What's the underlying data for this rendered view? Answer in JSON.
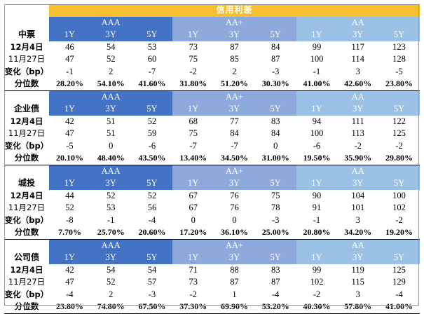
{
  "title": "信用利差",
  "groups": [
    "AAA",
    "AA+",
    "AA"
  ],
  "tenors": [
    "1Y",
    "3Y",
    "5Y"
  ],
  "row_labels": {
    "current": "12月4日",
    "previous": "11月27日",
    "change": "变化（bp）",
    "percentile": "分位数"
  },
  "sections": [
    {
      "name": "中票",
      "current": [
        "46",
        "54",
        "53",
        "73",
        "87",
        "84",
        "99",
        "117",
        "123"
      ],
      "previous": [
        "47",
        "52",
        "60",
        "75",
        "85",
        "87",
        "100",
        "114",
        "128"
      ],
      "change": [
        "-1",
        "2",
        "-7",
        "-2",
        "2",
        "-3",
        "-1",
        "3",
        "-5"
      ],
      "percentile": [
        "28.20%",
        "54.10%",
        "41.60%",
        "31.80%",
        "51.20%",
        "30.30%",
        "41.00%",
        "42.60%",
        "23.80%"
      ]
    },
    {
      "name": "企业债",
      "current": [
        "42",
        "51",
        "52",
        "68",
        "77",
        "83",
        "94",
        "111",
        "122"
      ],
      "previous": [
        "47",
        "51",
        "59",
        "75",
        "84",
        "84",
        "100",
        "113",
        "125"
      ],
      "change": [
        "-5",
        "0",
        "-6",
        "-7",
        "-7",
        "0",
        "-6",
        "-2",
        "-2"
      ],
      "percentile": [
        "20.10%",
        "48.40%",
        "43.50%",
        "13.40%",
        "34.50%",
        "31.00%",
        "19.50%",
        "35.90%",
        "29.80%"
      ]
    },
    {
      "name": "城投",
      "current": [
        "44",
        "52",
        "52",
        "67",
        "76",
        "75",
        "90",
        "104",
        "100"
      ],
      "previous": [
        "52",
        "53",
        "56",
        "67",
        "76",
        "78",
        "91",
        "101",
        "102"
      ],
      "change": [
        "-8",
        "-1",
        "-4",
        "0",
        "0",
        "-3",
        "-1",
        "3",
        "-2"
      ],
      "percentile": [
        "7.70%",
        "25.70%",
        "20.60%",
        "17.20%",
        "36.10%",
        "25.00%",
        "20.80%",
        "34.20%",
        "19.20%"
      ]
    },
    {
      "name": "公司债",
      "current": [
        "42",
        "54",
        "54",
        "71",
        "88",
        "83",
        "99",
        "119",
        "125"
      ],
      "previous": [
        "47",
        "52",
        "57",
        "73",
        "87",
        "87",
        "102",
        "115",
        "129"
      ],
      "change": [
        "-4",
        "2",
        "-3",
        "-2",
        "1",
        "-4",
        "-2",
        "3",
        "-4"
      ],
      "percentile": [
        "23.80%",
        "74.80%",
        "67.50%",
        "37.30%",
        "69.90%",
        "53.20%",
        "40.30%",
        "57.80%",
        "41.00%"
      ]
    }
  ]
}
